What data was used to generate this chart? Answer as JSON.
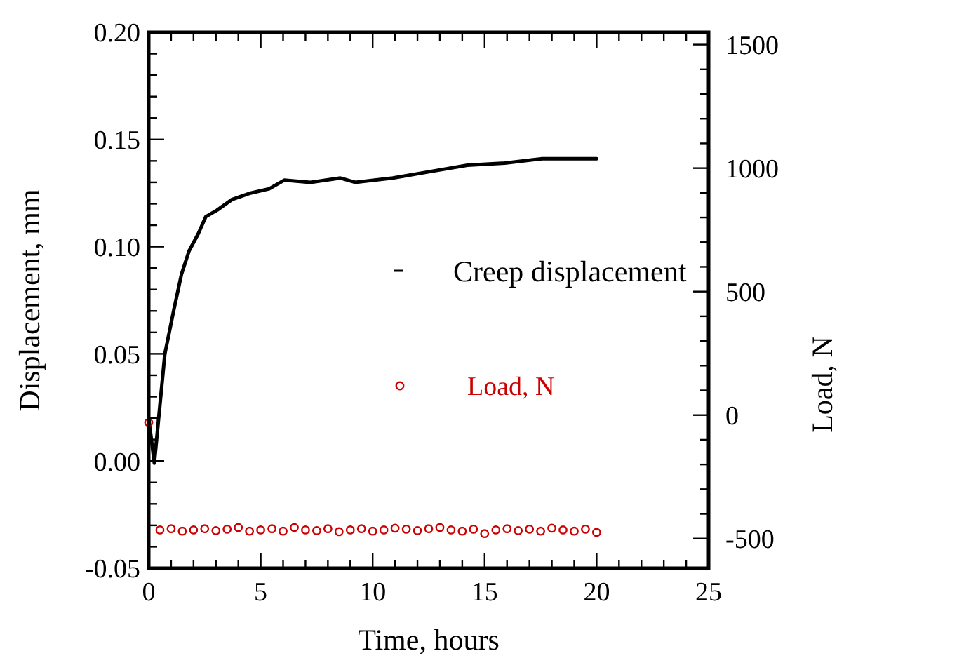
{
  "chart_data": {
    "type": "line",
    "xlabel": "Time, hours",
    "ylabel": "Displacement, mm",
    "y2label": "Load, N",
    "xlim": [
      0,
      25
    ],
    "ylim": [
      -0.05,
      0.2
    ],
    "y2lim": [
      -620,
      1550
    ],
    "xticks": [
      0,
      {
        "value": 1,
        "label": null
      },
      {
        "value": 2,
        "label": null
      },
      {
        "value": 3,
        "label": null
      },
      {
        "value": 4,
        "label": null
      },
      5,
      {
        "value": 6,
        "label": null
      },
      {
        "value": 7,
        "label": null
      },
      {
        "value": 8,
        "label": null
      },
      {
        "value": 9,
        "label": null
      },
      10,
      {
        "value": 11,
        "label": null
      },
      {
        "value": 12,
        "label": null
      },
      {
        "value": 13,
        "label": null
      },
      {
        "value": 14,
        "label": null
      },
      15,
      {
        "value": 16,
        "label": null
      },
      {
        "value": 17,
        "label": null
      },
      {
        "value": 18,
        "label": null
      },
      {
        "value": 19,
        "label": null
      },
      20,
      {
        "value": 21,
        "label": null
      },
      {
        "value": 22,
        "label": null
      },
      {
        "value": 23,
        "label": null
      },
      {
        "value": 24,
        "label": null
      },
      25
    ],
    "yticks": [
      {
        "value": -0.05,
        "label": "-0.05"
      },
      {
        "value": -0.04,
        "label": null
      },
      {
        "value": -0.03,
        "label": null
      },
      {
        "value": -0.02,
        "label": null
      },
      {
        "value": -0.01,
        "label": null
      },
      {
        "value": 0,
        "label": "0.00"
      },
      {
        "value": 0.01,
        "label": null
      },
      {
        "value": 0.02,
        "label": null
      },
      {
        "value": 0.03,
        "label": null
      },
      {
        "value": 0.04,
        "label": null
      },
      {
        "value": 0.05,
        "label": "0.05"
      },
      {
        "value": 0.06,
        "label": null
      },
      {
        "value": 0.07,
        "label": null
      },
      {
        "value": 0.08,
        "label": null
      },
      {
        "value": 0.09,
        "label": null
      },
      {
        "value": 0.1,
        "label": "0.10"
      },
      {
        "value": 0.11,
        "label": null
      },
      {
        "value": 0.12,
        "label": null
      },
      {
        "value": 0.13,
        "label": null
      },
      {
        "value": 0.14,
        "label": null
      },
      {
        "value": 0.15,
        "label": "0.15"
      },
      {
        "value": 0.16,
        "label": null
      },
      {
        "value": 0.17,
        "label": null
      },
      {
        "value": 0.18,
        "label": null
      },
      {
        "value": 0.19,
        "label": null
      },
      {
        "value": 0.2,
        "label": "0.20"
      }
    ],
    "y2ticks": [
      -500,
      {
        "value": -400,
        "label": null
      },
      {
        "value": -300,
        "label": null
      },
      {
        "value": -200,
        "label": null
      },
      {
        "value": -100,
        "label": null
      },
      0,
      {
        "value": 100,
        "label": null
      },
      {
        "value": 200,
        "label": null
      },
      {
        "value": 300,
        "label": null
      },
      {
        "value": 400,
        "label": null
      },
      500,
      {
        "value": 600,
        "label": null
      },
      {
        "value": 700,
        "label": null
      },
      {
        "value": 800,
        "label": null
      },
      {
        "value": 900,
        "label": null
      },
      1000,
      {
        "value": 1100,
        "label": null
      },
      {
        "value": 1200,
        "label": null
      },
      {
        "value": 1300,
        "label": null
      },
      {
        "value": 1400,
        "label": null
      },
      1500
    ],
    "grid": false,
    "legend": "right",
    "series": [
      {
        "name": "Creep displacement",
        "color": "#000000",
        "marker": "none",
        "x": [
          0,
          0.25,
          0.72,
          1.13,
          1.46,
          1.8,
          2.21,
          2.55,
          3.05,
          3.72,
          4.55,
          5.38,
          6.05,
          7.22,
          8.56,
          9.22,
          10.9,
          12.56,
          14.23,
          15.9,
          17.57,
          20
        ],
        "values": [
          0.02,
          -0.001,
          0.05,
          0.071,
          0.087,
          0.098,
          0.106,
          0.114,
          0.117,
          0.122,
          0.125,
          0.127,
          0.131,
          0.13,
          0.132,
          0.13,
          0.132,
          0.135,
          0.138,
          0.139,
          0.141,
          0.141
        ]
      },
      {
        "name": "Load, N",
        "type": "scatter",
        "axis": "y2",
        "color": "#cc0000",
        "marker": "circle",
        "x": [
          0,
          0.5,
          1,
          1.5,
          2,
          2.5,
          3,
          3.5,
          4,
          4.5,
          5,
          5.5,
          6,
          6.5,
          7,
          7.5,
          8,
          8.5,
          9,
          9.5,
          10,
          10.5,
          11,
          11.5,
          12,
          12.5,
          13,
          13.5,
          14,
          14.5,
          15,
          15.5,
          16,
          16.5,
          17,
          17.5,
          18,
          18.5,
          19,
          19.5,
          20
        ],
        "values": [
          -30,
          -465,
          -460,
          -470,
          -465,
          -460,
          -468,
          -462,
          -455,
          -470,
          -465,
          -460,
          -470,
          -455,
          -465,
          -468,
          -460,
          -472,
          -465,
          -460,
          -470,
          -465,
          -458,
          -462,
          -468,
          -460,
          -455,
          -465,
          -470,
          -462,
          -480,
          -465,
          -460,
          -468,
          -462,
          -470,
          -458,
          -465,
          -470,
          -462,
          -475
        ]
      }
    ]
  }
}
